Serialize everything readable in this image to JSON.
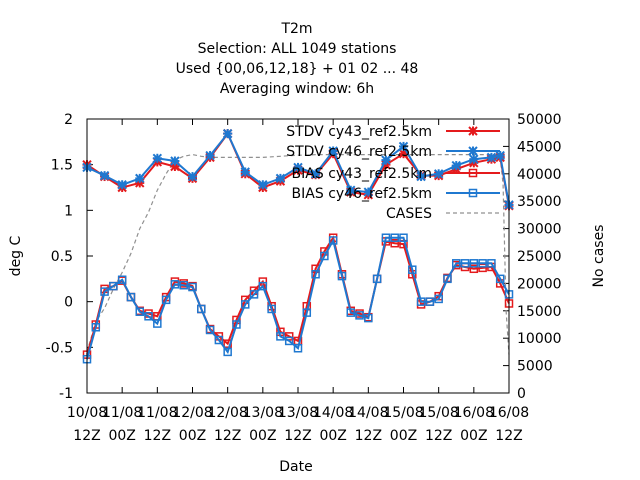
{
  "chart_data": {
    "type": "line",
    "title_lines": [
      "T2m",
      "Selection: ALL    1049 stations",
      "Used {00,06,12,18} + 01 02 ... 48",
      "Averaging window:  6h"
    ],
    "xlabel": "Date",
    "ylabel": "deg C",
    "y2label": "No cases",
    "ylim": [
      -1,
      2
    ],
    "y2lim": [
      0,
      50000
    ],
    "yticks": [
      "-1",
      "-0.5",
      "0",
      "0.5",
      "1",
      "1.5",
      "2"
    ],
    "y2ticks": [
      "0",
      "5000",
      "10000",
      "15000",
      "20000",
      "25000",
      "30000",
      "35000",
      "40000",
      "45000",
      "50000"
    ],
    "xticks": [
      {
        "top": "10/08",
        "bottom": "12Z"
      },
      {
        "top": "11/08",
        "bottom": "00Z"
      },
      {
        "top": "11/08",
        "bottom": "12Z"
      },
      {
        "top": "12/08",
        "bottom": "00Z"
      },
      {
        "top": "12/08",
        "bottom": "12Z"
      },
      {
        "top": "13/08",
        "bottom": "00Z"
      },
      {
        "top": "13/08",
        "bottom": "12Z"
      },
      {
        "top": "14/08",
        "bottom": "00Z"
      },
      {
        "top": "14/08",
        "bottom": "12Z"
      },
      {
        "top": "15/08",
        "bottom": "00Z"
      },
      {
        "top": "15/08",
        "bottom": "12Z"
      },
      {
        "top": "16/08",
        "bottom": "00Z"
      },
      {
        "top": "16/08",
        "bottom": "12Z"
      }
    ],
    "x_hours": [
      0,
      3,
      6,
      9,
      12,
      15,
      18,
      21,
      24,
      27,
      30,
      33,
      36,
      39,
      42,
      45,
      48,
      51,
      54,
      57,
      60,
      63,
      66,
      69,
      72,
      75,
      78,
      81,
      84,
      87,
      90,
      93,
      96,
      99,
      102,
      105,
      108,
      111,
      114,
      117,
      120,
      123,
      126,
      129,
      132,
      135,
      138,
      141,
      144
    ],
    "series": [
      {
        "name": "STDV cy43_ref2.5km",
        "axis": "left",
        "color": "#e41a1c",
        "marker": "x",
        "x": [
          0,
          6,
          12,
          18,
          24,
          30,
          36,
          42,
          48,
          54,
          60,
          66,
          72,
          78,
          84,
          90,
          96,
          102,
          108,
          114,
          120,
          126,
          132,
          138,
          141,
          144
        ],
        "y": [
          1.5,
          1.37,
          1.25,
          1.3,
          1.53,
          1.48,
          1.35,
          1.58,
          1.84,
          1.4,
          1.25,
          1.32,
          1.44,
          1.39,
          1.62,
          1.2,
          1.17,
          1.5,
          1.62,
          1.38,
          1.38,
          1.45,
          1.52,
          1.56,
          1.58,
          1.05
        ]
      },
      {
        "name": "STDV cy46_ref2.5km",
        "axis": "left",
        "color": "#1f78d0",
        "marker": "x",
        "x": [
          0,
          6,
          12,
          18,
          24,
          30,
          36,
          42,
          48,
          54,
          60,
          66,
          72,
          78,
          84,
          90,
          96,
          102,
          108,
          114,
          120,
          126,
          132,
          138,
          141,
          144
        ],
        "y": [
          1.47,
          1.38,
          1.28,
          1.35,
          1.57,
          1.54,
          1.37,
          1.6,
          1.84,
          1.42,
          1.28,
          1.35,
          1.47,
          1.4,
          1.65,
          1.22,
          1.2,
          1.55,
          1.7,
          1.37,
          1.4,
          1.49,
          1.56,
          1.58,
          1.6,
          1.06
        ]
      },
      {
        "name": "BIAS cy43_ref2.5km",
        "axis": "left",
        "color": "#e41a1c",
        "marker": "square",
        "x": [
          0,
          3,
          6,
          9,
          12,
          15,
          18,
          21,
          24,
          27,
          30,
          33,
          36,
          39,
          42,
          45,
          48,
          51,
          54,
          57,
          60,
          63,
          66,
          69,
          72,
          75,
          78,
          81,
          84,
          87,
          90,
          93,
          96,
          99,
          102,
          105,
          108,
          111,
          114,
          117,
          120,
          123,
          126,
          129,
          132,
          135,
          138,
          141,
          144
        ],
        "y": [
          -0.58,
          -0.25,
          0.14,
          0.17,
          0.23,
          0.05,
          -0.1,
          -0.13,
          -0.16,
          0.05,
          0.22,
          0.2,
          0.17,
          -0.08,
          -0.3,
          -0.38,
          -0.46,
          -0.2,
          0.02,
          0.12,
          0.22,
          -0.05,
          -0.33,
          -0.38,
          -0.43,
          -0.05,
          0.36,
          0.55,
          0.7,
          0.3,
          -0.1,
          -0.13,
          -0.17,
          0.25,
          0.66,
          0.64,
          0.63,
          0.3,
          -0.03,
          0.0,
          0.06,
          0.26,
          0.4,
          0.38,
          0.36,
          0.37,
          0.38,
          0.2,
          -0.02
        ]
      },
      {
        "name": "BIAS cy46_ref2.5km",
        "axis": "left",
        "color": "#1f78d0",
        "marker": "square",
        "x": [
          0,
          3,
          6,
          9,
          12,
          15,
          18,
          21,
          24,
          27,
          30,
          33,
          36,
          39,
          42,
          45,
          48,
          51,
          54,
          57,
          60,
          63,
          66,
          69,
          72,
          75,
          78,
          81,
          84,
          87,
          90,
          93,
          96,
          99,
          102,
          105,
          108,
          111,
          114,
          117,
          120,
          123,
          126,
          129,
          132,
          135,
          138,
          141,
          144
        ],
        "y": [
          -0.63,
          -0.28,
          0.11,
          0.17,
          0.24,
          0.05,
          -0.11,
          -0.16,
          -0.24,
          0.02,
          0.19,
          0.18,
          0.16,
          -0.08,
          -0.31,
          -0.42,
          -0.55,
          -0.25,
          -0.03,
          0.08,
          0.17,
          -0.08,
          -0.38,
          -0.43,
          -0.51,
          -0.12,
          0.3,
          0.5,
          0.67,
          0.28,
          -0.12,
          -0.15,
          -0.18,
          0.25,
          0.7,
          0.7,
          0.7,
          0.35,
          0.0,
          0.0,
          0.03,
          0.25,
          0.42,
          0.42,
          0.42,
          0.42,
          0.42,
          0.25,
          0.08
        ]
      },
      {
        "name": "CASES",
        "axis": "right",
        "color": "#909090",
        "marker": "none",
        "dashed": true,
        "x": [
          0,
          3,
          6,
          9,
          12,
          15,
          18,
          21,
          24,
          27,
          30,
          33,
          36,
          39,
          42,
          45,
          48,
          51,
          54,
          57,
          60,
          63,
          66,
          69,
          72,
          75,
          78,
          81,
          84,
          87,
          90,
          93,
          96,
          99,
          102,
          105,
          108,
          111,
          114,
          117,
          120,
          123,
          126,
          129,
          132,
          135,
          138,
          141,
          142,
          143,
          144
        ],
        "y": [
          7500,
          13000,
          15500,
          19000,
          22000,
          25500,
          30000,
          33000,
          37000,
          40000,
          42500,
          43200,
          43500,
          43200,
          43000,
          43000,
          43000,
          43000,
          43000,
          43000,
          43000,
          43100,
          43200,
          43300,
          43400,
          43400,
          43500,
          43500,
          43500,
          43500,
          43500,
          43500,
          43500,
          43500,
          43500,
          43500,
          43500,
          43500,
          43500,
          43500,
          43500,
          43500,
          43500,
          43500,
          43500,
          43500,
          43500,
          43200,
          38000,
          15000,
          7000
        ]
      }
    ]
  }
}
